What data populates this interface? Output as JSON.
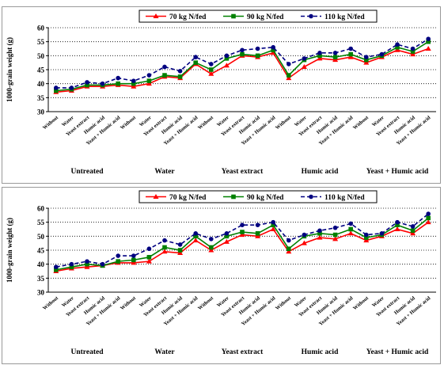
{
  "chart_data": [
    {
      "type": "line",
      "y_label": "1000-grain weight (g)",
      "categories": [
        "Without",
        "Water",
        "Yeast extract",
        "Humic acid",
        "Yeast + Humic acid",
        "Without",
        "Water",
        "Yeast extract",
        "Humic acid",
        "Yeast + Humic acid",
        "Without",
        "Water",
        "Yeast extract",
        "Humic acid",
        "Yeast + Humic acid",
        "Without",
        "Water",
        "Yeast extract",
        "Humic acid",
        "Yeast + Humic acid",
        "Without",
        "Water",
        "Yeast extract",
        "Humic acid",
        "Yeast + Humic acid"
      ],
      "groups": [
        "Untreated",
        "Water",
        "Yeast extract",
        "Humic acid",
        "Yeast + Humic acid"
      ],
      "series": [
        {
          "name": "70 kg N/fed",
          "color": "#ff0000",
          "marker": "triangle",
          "dashed": false,
          "values": [
            37,
            37.5,
            39,
            39,
            39.5,
            39,
            40,
            42.5,
            42,
            47,
            43.5,
            46.5,
            50,
            49.5,
            51,
            42,
            46,
            49,
            48.5,
            49.5,
            47.5,
            49.5,
            52,
            50.5,
            52.5
          ]
        },
        {
          "name": "90 kg N/fed",
          "color": "#008000",
          "marker": "square",
          "dashed": false,
          "values": [
            37.5,
            38,
            39.5,
            39.5,
            40,
            40,
            41,
            43,
            42.5,
            47.5,
            45,
            49,
            50.5,
            50,
            52,
            43,
            48.5,
            50,
            49.5,
            50.5,
            48.5,
            50,
            53,
            51.5,
            55
          ]
        },
        {
          "name": "110 kg N/fed",
          "color": "#000080",
          "marker": "circle",
          "dashed": true,
          "values": [
            38.5,
            38.5,
            40.5,
            40,
            42,
            41,
            43,
            46,
            44.5,
            49.5,
            47,
            50,
            52,
            52.5,
            53,
            47,
            49,
            51,
            51,
            52.5,
            49.5,
            50.5,
            54,
            52.5,
            56
          ]
        }
      ],
      "ylim": [
        30,
        60
      ],
      "yticks": [
        30,
        35,
        40,
        45,
        50,
        55,
        60
      ],
      "grid": true,
      "legend": "top"
    },
    {
      "type": "line",
      "y_label": "1000-grain weight (g)",
      "categories": [
        "Without",
        "Water",
        "Yeast extract",
        "Humic acid",
        "Yeast + Humic acid",
        "Without",
        "Water",
        "Yeast extract",
        "Humic acid",
        "Yeast + Humic acid",
        "Without",
        "Water",
        "Yeast extract",
        "Humic acid",
        "Yeast + Humic acid",
        "Without",
        "Water",
        "Yeast extract",
        "Humic acid",
        "Yeast + Humic acid",
        "Without",
        "Water",
        "Yeast extract",
        "Humic acid",
        "Yeast + Humic acid"
      ],
      "groups": [
        "Untreated",
        "Water",
        "Yeast extract",
        "Humic acid",
        "Yeast + Humic acid"
      ],
      "series": [
        {
          "name": "70 kg N/fed",
          "color": "#ff0000",
          "marker": "triangle",
          "dashed": false,
          "values": [
            37.5,
            38.5,
            39,
            39.5,
            40.5,
            40.5,
            41,
            44.5,
            44,
            48.5,
            45,
            48,
            50.5,
            50,
            52.5,
            44.5,
            47.5,
            49.5,
            49,
            51,
            48.5,
            50,
            52.5,
            51,
            55
          ]
        },
        {
          "name": "90 kg N/fed",
          "color": "#008000",
          "marker": "square",
          "dashed": false,
          "values": [
            38,
            39,
            40,
            39.5,
            41,
            41.5,
            42.5,
            46,
            45,
            50,
            46,
            50,
            51.5,
            51,
            54,
            45.5,
            50,
            51,
            50.5,
            52.5,
            49.5,
            50.5,
            54,
            52,
            56.5
          ]
        },
        {
          "name": "110 kg N/fed",
          "color": "#000080",
          "marker": "circle",
          "dashed": true,
          "values": [
            39,
            40,
            41,
            40,
            43,
            43,
            45.5,
            48.5,
            47,
            51,
            49,
            51,
            54,
            54,
            55,
            48.5,
            50.5,
            52,
            53,
            54.5,
            50.5,
            51,
            55,
            53.5,
            58
          ]
        }
      ],
      "ylim": [
        30,
        60
      ],
      "yticks": [
        30,
        35,
        40,
        45,
        50,
        55,
        60
      ],
      "grid": true,
      "legend": "top"
    }
  ]
}
